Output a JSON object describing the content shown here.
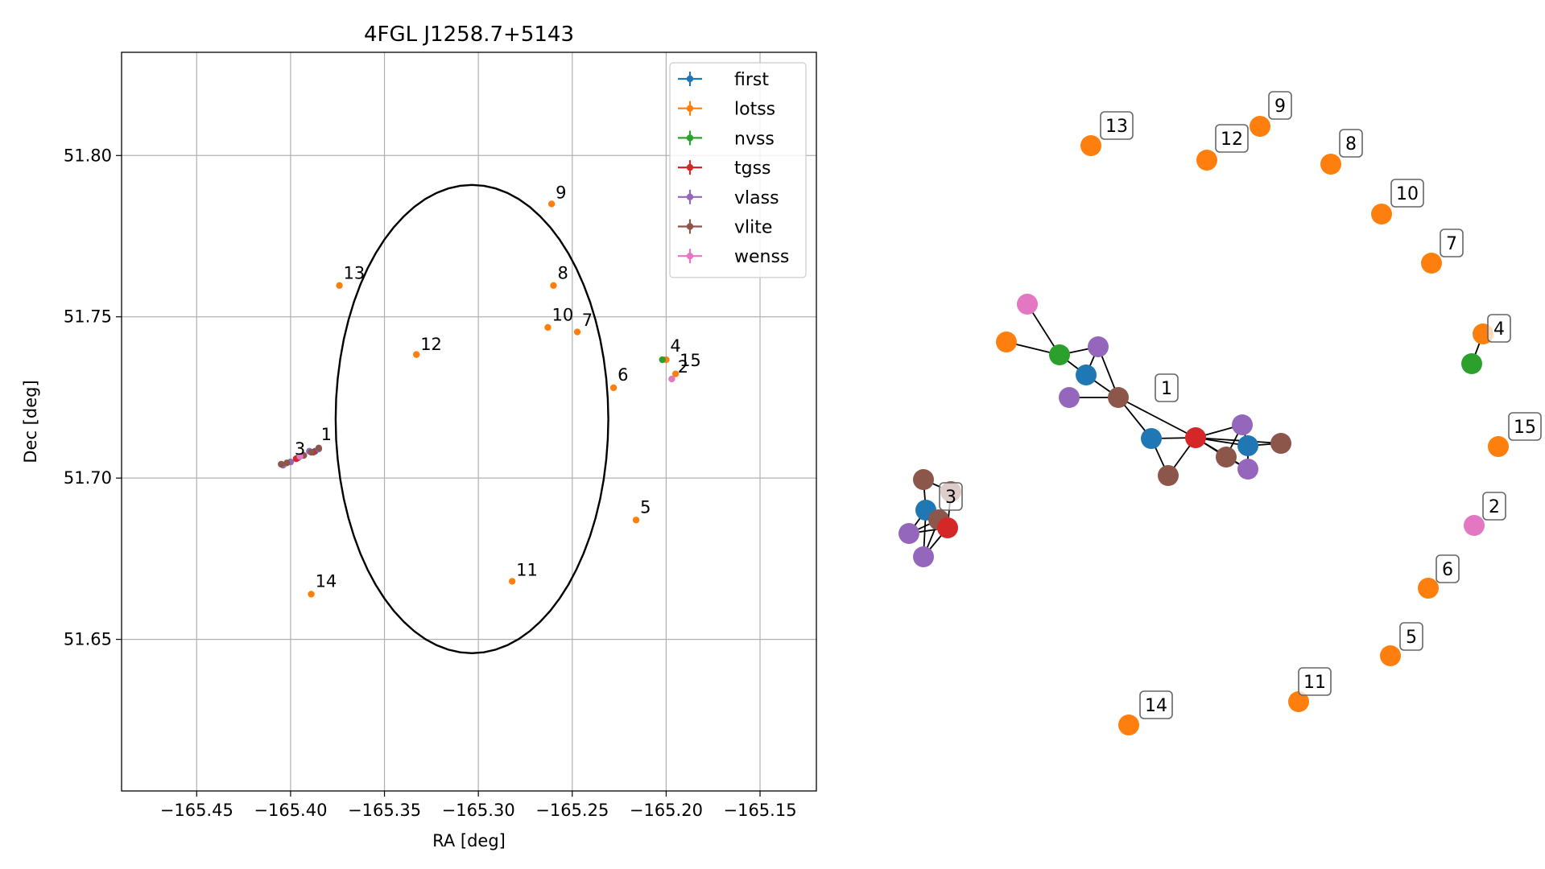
{
  "chart_data": [
    {
      "type": "scatter",
      "title": "4FGL J1258.7+5143",
      "xlabel": "RA [deg]",
      "ylabel": "Dec [deg]",
      "xlim": [
        -165.49,
        -165.12
      ],
      "ylim": [
        51.603,
        51.832
      ],
      "xticks": [
        -165.45,
        -165.4,
        -165.35,
        -165.3,
        -165.25,
        -165.2,
        -165.15
      ],
      "xtick_labels": [
        "−165.45",
        "−165.40",
        "−165.35",
        "−165.30",
        "−165.25",
        "−165.20",
        "−165.15"
      ],
      "yticks": [
        51.65,
        51.7,
        51.75,
        51.8
      ],
      "ytick_labels": [
        "51.65",
        "51.70",
        "51.75",
        "51.80"
      ],
      "grid": true,
      "legend_position": "top-right",
      "circle": {
        "center_ra": -165.3034,
        "center_dec": 51.7183,
        "radius_deg": 0.0726
      },
      "series": [
        {
          "name": "first",
          "color": "#1f77b4",
          "points": [
            [
              -165.387,
              51.7083
            ],
            [
              -165.396,
              51.7063
            ]
          ]
        },
        {
          "name": "lotss",
          "color": "#ff7f0e",
          "points": [
            [
              -165.2,
              51.7367
            ],
            [
              -165.2473,
              51.7453
            ],
            [
              -165.26,
              51.7597
            ],
            [
              -165.261,
              51.785
            ],
            [
              -165.263,
              51.7467
            ],
            [
              -165.228,
              51.728
            ],
            [
              -165.216,
              51.687
            ],
            [
              -165.282,
              51.668
            ],
            [
              -165.333,
              51.7383
            ],
            [
              -165.374,
              51.7597
            ],
            [
              -165.389,
              51.664
            ],
            [
              -165.195,
              51.7323
            ]
          ]
        },
        {
          "name": "nvss",
          "color": "#2ca02c",
          "points": [
            [
              -165.202,
              51.7367
            ]
          ]
        },
        {
          "name": "tgss",
          "color": "#d62728",
          "points": [
            [
              -165.388,
              51.708
            ],
            [
              -165.397,
              51.706
            ]
          ]
        },
        {
          "name": "vlass",
          "color": "#9467bd",
          "points": [
            [
              -165.385,
              51.709
            ],
            [
              -165.39,
              51.7083
            ],
            [
              -165.4,
              51.705
            ],
            [
              -165.404,
              51.704
            ]
          ]
        },
        {
          "name": "vlite",
          "color": "#8c564b",
          "points": [
            [
              -165.385,
              51.7093
            ],
            [
              -165.389,
              51.708
            ],
            [
              -165.393,
              51.707
            ],
            [
              -165.402,
              51.7047
            ],
            [
              -165.405,
              51.7043
            ]
          ]
        },
        {
          "name": "wenss",
          "color": "#e377c2",
          "points": [
            [
              -165.395,
              51.7067
            ],
            [
              -165.197,
              51.7307
            ]
          ]
        }
      ],
      "annotations": [
        {
          "text": "1",
          "ra": -165.386,
          "dec": 51.71
        },
        {
          "text": "2",
          "ra": -165.196,
          "dec": 51.731
        },
        {
          "text": "3",
          "ra": -165.4,
          "dec": 51.7055
        },
        {
          "text": "4",
          "ra": -165.2,
          "dec": 51.7375
        },
        {
          "text": "5",
          "ra": -165.216,
          "dec": 51.6875
        },
        {
          "text": "6",
          "ra": -165.228,
          "dec": 51.7285
        },
        {
          "text": "7",
          "ra": -165.247,
          "dec": 51.7455
        },
        {
          "text": "8",
          "ra": -165.26,
          "dec": 51.76
        },
        {
          "text": "9",
          "ra": -165.261,
          "dec": 51.785
        },
        {
          "text": "10",
          "ra": -165.263,
          "dec": 51.747
        },
        {
          "text": "11",
          "ra": -165.282,
          "dec": 51.668
        },
        {
          "text": "12",
          "ra": -165.333,
          "dec": 51.738
        },
        {
          "text": "13",
          "ra": -165.374,
          "dec": 51.76
        },
        {
          "text": "14",
          "ra": -165.389,
          "dec": 51.6645
        },
        {
          "text": "15",
          "ra": -165.195,
          "dec": 51.733
        }
      ]
    },
    {
      "type": "network",
      "nodes": [
        {
          "id": "n1",
          "color": "#ff7f0e"
        },
        {
          "id": "n2",
          "color": "#e377c2"
        },
        {
          "id": "n3",
          "color": "#2ca02c"
        },
        {
          "id": "n4",
          "color": "#9467bd"
        },
        {
          "id": "n5",
          "color": "#1f77b4"
        },
        {
          "id": "n6",
          "color": "#9467bd"
        },
        {
          "id": "n7",
          "color": "#8c564b"
        },
        {
          "id": "n8",
          "color": "#1f77b4"
        },
        {
          "id": "n9",
          "color": "#d62728"
        },
        {
          "id": "n10",
          "color": "#8c564b"
        },
        {
          "id": "n11",
          "color": "#9467bd"
        },
        {
          "id": "n12",
          "color": "#1f77b4"
        },
        {
          "id": "n13",
          "color": "#8c564b"
        },
        {
          "id": "n14",
          "color": "#9467bd"
        },
        {
          "id": "n15",
          "color": "#8c564b"
        },
        {
          "id": "c1",
          "color": "#8c564b"
        },
        {
          "id": "c2",
          "color": "#1f77b4"
        },
        {
          "id": "c3",
          "color": "#9467bd"
        },
        {
          "id": "c4",
          "color": "#9467bd"
        },
        {
          "id": "c5",
          "color": "#8c564b"
        },
        {
          "id": "c6",
          "color": "#8c564b"
        },
        {
          "id": "c7",
          "color": "#d62728"
        },
        {
          "id": "s13",
          "color": "#ff7f0e"
        },
        {
          "id": "s12",
          "color": "#ff7f0e"
        },
        {
          "id": "s9",
          "color": "#ff7f0e"
        },
        {
          "id": "s8",
          "color": "#ff7f0e"
        },
        {
          "id": "s10",
          "color": "#ff7f0e"
        },
        {
          "id": "s7",
          "color": "#ff7f0e"
        },
        {
          "id": "s4",
          "color": "#ff7f0e"
        },
        {
          "id": "s4b",
          "color": "#2ca02c"
        },
        {
          "id": "s15",
          "color": "#ff7f0e"
        },
        {
          "id": "s2",
          "color": "#e377c2"
        },
        {
          "id": "s6",
          "color": "#ff7f0e"
        },
        {
          "id": "s5",
          "color": "#ff7f0e"
        },
        {
          "id": "s11",
          "color": "#ff7f0e"
        },
        {
          "id": "s14",
          "color": "#ff7f0e"
        }
      ],
      "edges": [
        [
          "n1",
          "n3"
        ],
        [
          "n2",
          "n3"
        ],
        [
          "n3",
          "n4"
        ],
        [
          "n3",
          "n5"
        ],
        [
          "n4",
          "n5"
        ],
        [
          "n5",
          "n7"
        ],
        [
          "n4",
          "n7"
        ],
        [
          "n6",
          "n7"
        ],
        [
          "n7",
          "n8"
        ],
        [
          "n7",
          "n9"
        ],
        [
          "n8",
          "n9"
        ],
        [
          "n9",
          "n10"
        ],
        [
          "n8",
          "n10"
        ],
        [
          "n9",
          "n11"
        ],
        [
          "n9",
          "n12"
        ],
        [
          "n9",
          "n13"
        ],
        [
          "n9",
          "n14"
        ],
        [
          "n9",
          "n15"
        ],
        [
          "n11",
          "n12"
        ],
        [
          "n12",
          "n14"
        ],
        [
          "n12",
          "n15"
        ],
        [
          "n11",
          "n13"
        ],
        [
          "n13",
          "n14"
        ],
        [
          "c1",
          "c2"
        ],
        [
          "c1",
          "c6"
        ],
        [
          "c2",
          "c3"
        ],
        [
          "c2",
          "c4"
        ],
        [
          "c2",
          "c5"
        ],
        [
          "c2",
          "c7"
        ],
        [
          "c3",
          "c7"
        ],
        [
          "c4",
          "c7"
        ],
        [
          "c5",
          "c7"
        ],
        [
          "c6",
          "c7"
        ],
        [
          "c3",
          "c5"
        ],
        [
          "c4",
          "c5"
        ],
        [
          "s4",
          "s4b"
        ]
      ],
      "labels": [
        "1",
        "2",
        "3",
        "4",
        "5",
        "6",
        "7",
        "8",
        "9",
        "10",
        "11",
        "12",
        "13",
        "14",
        "15"
      ]
    }
  ]
}
